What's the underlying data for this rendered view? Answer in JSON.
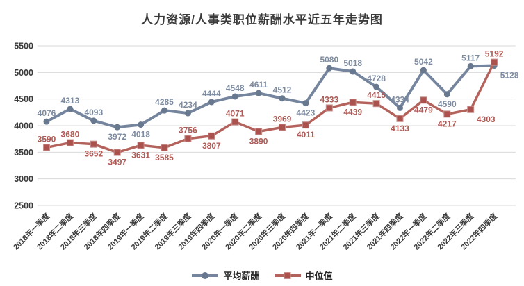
{
  "title": "人力资源/人事类职位薪酬水平近五年走势图",
  "colors": {
    "avg_line": "#75859D",
    "avg_marker": "#68788F",
    "avg_label": "#7D8BA1",
    "med_line": "#B4625C",
    "med_marker": "#AC524E",
    "med_label": "#AF5A55",
    "gridline": "#D9D9D9",
    "axis_text": "#3A3A3A",
    "background": "#FFFFFF"
  },
  "chart_data": {
    "type": "line",
    "title": "人力资源/人事类职位薪酬水平近五年走势图",
    "categories": [
      "2018年一季度",
      "2018年二季度",
      "2018年三季度",
      "2018年四季度",
      "2019年一季度",
      "2019年二季度",
      "2019年三季度",
      "2019年四季度",
      "2020年一季度",
      "2020年二季度",
      "2020年三季度",
      "2020年四季度",
      "2021年一季度",
      "2021年二季度",
      "2021年三季度",
      "2021年四季度",
      "2022年一季度",
      "2022年二季度",
      "2022年三季度",
      "2022年四季度"
    ],
    "series": [
      {
        "name": "平均薪酬",
        "marker": "circle",
        "values": [
          4076,
          4313,
          4093,
          3972,
          4018,
          4285,
          4234,
          4444,
          4548,
          4611,
          4512,
          4423,
          5080,
          5018,
          4728,
          4334,
          5042,
          4590,
          5117,
          5128
        ],
        "label_pos": [
          "above",
          "above",
          "above",
          "below",
          "below",
          "above",
          "above",
          "above",
          "above",
          "above",
          "above",
          "below",
          "above",
          "above",
          "above",
          "above",
          "above",
          "below",
          "above",
          "below-right"
        ]
      },
      {
        "name": "中位值",
        "marker": "square",
        "values": [
          3590,
          3680,
          3652,
          3497,
          3631,
          3585,
          3756,
          3807,
          4071,
          3890,
          3969,
          4011,
          4333,
          4439,
          4415,
          4133,
          4479,
          4217,
          4303,
          5192
        ],
        "label_pos": [
          "above",
          "above",
          "below",
          "below",
          "below",
          "below",
          "above",
          "below",
          "above",
          "below",
          "above",
          "below",
          "above",
          "below",
          "above",
          "below",
          "below",
          "below",
          "below-right",
          "above"
        ]
      }
    ],
    "xlabel": "",
    "ylabel": "",
    "ylim": [
      2500,
      5500
    ],
    "yticks": [
      2500,
      3000,
      3500,
      4000,
      4500,
      5000,
      5500
    ],
    "grid": true,
    "legend_position": "bottom",
    "data_labels": true
  }
}
